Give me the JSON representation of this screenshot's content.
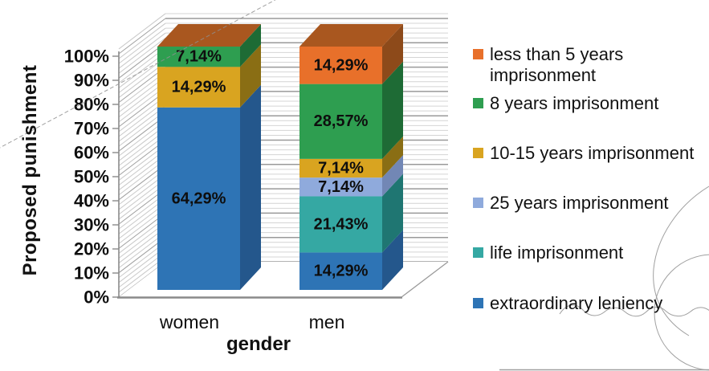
{
  "chart_data": {
    "type": "bar",
    "variant": "3d-stacked-percent-column",
    "title": "",
    "xlabel": "gender",
    "ylabel": "Proposed punishment",
    "categories": [
      "women",
      "men"
    ],
    "series": [
      {
        "name": "extraordinary leniency",
        "color": "#2E74B5",
        "side_color": "#24578C",
        "values": [
          64.29,
          14.29
        ],
        "data_labels": [
          "64,29%",
          "14,29%"
        ]
      },
      {
        "name": "life imprisonment",
        "color": "#35A8A3",
        "side_color": "#1F7672",
        "values": [
          null,
          21.43
        ],
        "data_labels": [
          "",
          "21,43%"
        ]
      },
      {
        "name": "25 years imprisonment",
        "color": "#8FAADC",
        "side_color": "#7287B5",
        "values": [
          null,
          7.14
        ],
        "data_labels": [
          "",
          "7,14%"
        ]
      },
      {
        "name": "10-15 years imprisonment",
        "color": "#D9A420",
        "side_color": "#8A6E14",
        "values": [
          14.29,
          7.14
        ],
        "data_labels": [
          "14,29%",
          "7,14%"
        ]
      },
      {
        "name": "8 years imprisonment",
        "color": "#2E9E50",
        "side_color": "#1E6B35",
        "values": [
          7.14,
          28.57
        ],
        "data_labels": [
          "7,14%",
          "28,57%"
        ]
      },
      {
        "name": "less than 5 years imprisonment",
        "color": "#E8702A",
        "side_color": "#8D4A1A",
        "top_color": "#A9571F",
        "values": [
          null,
          14.29
        ],
        "data_labels": [
          "",
          "14,29%"
        ]
      }
    ],
    "bar_top_cap_color": "#A9571F",
    "yticks": [
      "0%",
      "10%",
      "20%",
      "30%",
      "40%",
      "50%",
      "60%",
      "70%",
      "80%",
      "90%",
      "100%"
    ],
    "ylim": [
      0,
      100
    ],
    "grid": "horizontal major and minor gridlines on back wall, hatched left wall",
    "legend_position": "right"
  },
  "legend": {
    "items": [
      {
        "label": "less than 5 years imprisonment",
        "color": "#E8702A"
      },
      {
        "label": "8 years imprisonment",
        "color": "#2E9E50"
      },
      {
        "label": "10-15 years imprisonment",
        "color": "#D9A420"
      },
      {
        "label": "25 years imprisonment",
        "color": "#8FAADC"
      },
      {
        "label": "life imprisonment",
        "color": "#35A8A3"
      },
      {
        "label": "extraordinary leniency",
        "color": "#2E74B5"
      }
    ]
  }
}
